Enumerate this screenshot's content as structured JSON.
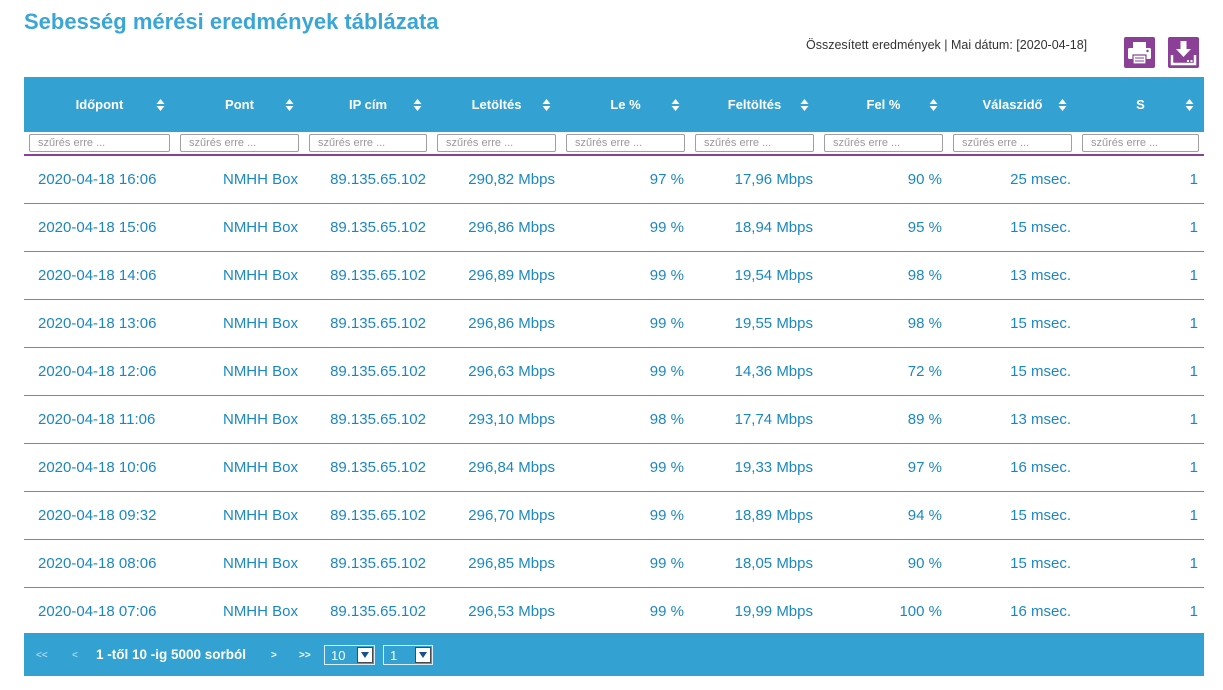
{
  "page": {
    "title": "Sebesség mérési eredmények táblázata",
    "summary": "Összesített eredmények | Mai dátum: [2020-04-18]"
  },
  "toolbar": {
    "print_icon": "printer-icon",
    "download_icon": "download-icon",
    "button_color": "#8b3f96"
  },
  "table": {
    "columns": [
      "Időpont",
      "Pont",
      "IP cím",
      "Letöltés",
      "Le %",
      "Feltöltés",
      "Fel %",
      "Válaszidő",
      "S"
    ],
    "filter_placeholder": "szűrés erre ...",
    "rows": [
      [
        "2020-04-18 16:06",
        "NMHH Box",
        "89.135.65.102",
        "290,82 Mbps",
        "97 %",
        "17,96 Mbps",
        "90 %",
        "25 msec.",
        "1"
      ],
      [
        "2020-04-18 15:06",
        "NMHH Box",
        "89.135.65.102",
        "296,86 Mbps",
        "99 %",
        "18,94 Mbps",
        "95 %",
        "15 msec.",
        "1"
      ],
      [
        "2020-04-18 14:06",
        "NMHH Box",
        "89.135.65.102",
        "296,89 Mbps",
        "99 %",
        "19,54 Mbps",
        "98 %",
        "13 msec.",
        "1"
      ],
      [
        "2020-04-18 13:06",
        "NMHH Box",
        "89.135.65.102",
        "296,86 Mbps",
        "99 %",
        "19,55 Mbps",
        "98 %",
        "15 msec.",
        "1"
      ],
      [
        "2020-04-18 12:06",
        "NMHH Box",
        "89.135.65.102",
        "296,63 Mbps",
        "99 %",
        "14,36 Mbps",
        "72 %",
        "15 msec.",
        "1"
      ],
      [
        "2020-04-18 11:06",
        "NMHH Box",
        "89.135.65.102",
        "293,10 Mbps",
        "98 %",
        "17,74 Mbps",
        "89 %",
        "13 msec.",
        "1"
      ],
      [
        "2020-04-18 10:06",
        "NMHH Box",
        "89.135.65.102",
        "296,84 Mbps",
        "99 %",
        "19,33 Mbps",
        "97 %",
        "16 msec.",
        "1"
      ],
      [
        "2020-04-18 09:32",
        "NMHH Box",
        "89.135.65.102",
        "296,70 Mbps",
        "99 %",
        "18,89 Mbps",
        "94 %",
        "15 msec.",
        "1"
      ],
      [
        "2020-04-18 08:06",
        "NMHH Box",
        "89.135.65.102",
        "296,85 Mbps",
        "99 %",
        "18,05 Mbps",
        "90 %",
        "15 msec.",
        "1"
      ],
      [
        "2020-04-18 07:06",
        "NMHH Box",
        "89.135.65.102",
        "296,53 Mbps",
        "99 %",
        "19,99 Mbps",
        "100 %",
        "16 msec.",
        "1"
      ]
    ]
  },
  "pager": {
    "first": "<<",
    "prev": "<",
    "info": "1 -től 10 -ig 5000 sorból",
    "next": ">",
    "last": ">>",
    "page_size": "10",
    "page_number": "1"
  },
  "colors": {
    "accent": "#33a2d2",
    "text": "#1b87c2",
    "filter_border": "#8b3f96"
  }
}
